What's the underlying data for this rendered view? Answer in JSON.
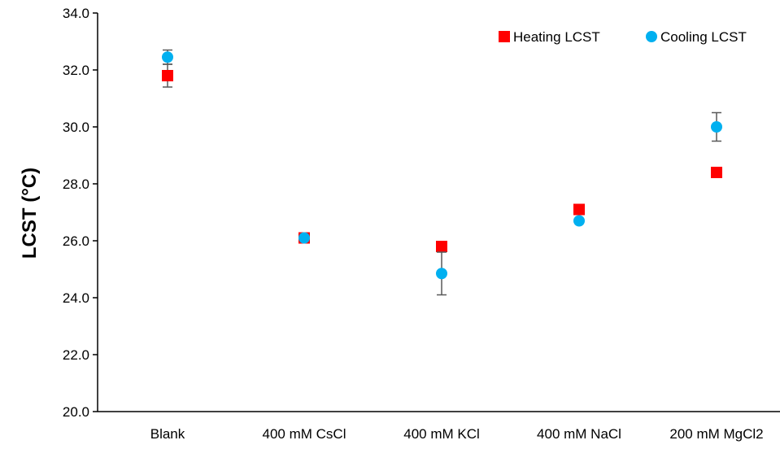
{
  "chart_data": {
    "type": "scatter",
    "title": "",
    "xlabel": "",
    "ylabel": "LCST (°C)",
    "categories": [
      "Blank",
      "400 mM CsCl",
      "400 mM KCl",
      "400 mM NaCl",
      "200 mM MgCl2"
    ],
    "ylim": [
      20.0,
      34.0
    ],
    "yticks": [
      "20.0",
      "22.0",
      "24.0",
      "26.0",
      "28.0",
      "30.0",
      "32.0",
      "34.0"
    ],
    "grid": false,
    "legend_position": "top-right",
    "series": [
      {
        "name": "Heating LCST",
        "marker": "square",
        "color": "#ff0000",
        "values": [
          31.8,
          26.1,
          25.8,
          27.1,
          28.4
        ],
        "errors": [
          0.4,
          0.1,
          0.15,
          0.1,
          0.1
        ]
      },
      {
        "name": "Cooling LCST",
        "marker": "circle",
        "color": "#00b0f0",
        "values": [
          32.45,
          26.1,
          24.85,
          26.7,
          30.0
        ],
        "errors": [
          0.25,
          0.1,
          0.75,
          0.1,
          0.5
        ]
      }
    ]
  }
}
